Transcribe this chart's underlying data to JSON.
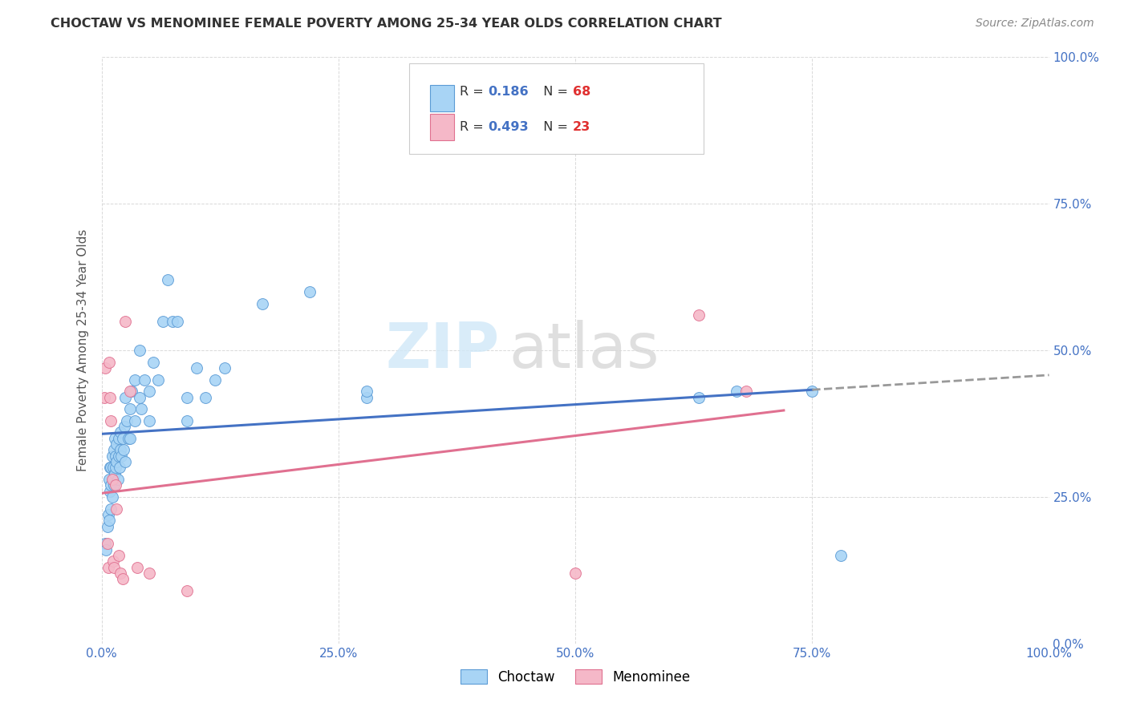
{
  "title": "CHOCTAW VS MENOMINEE FEMALE POVERTY AMONG 25-34 YEAR OLDS CORRELATION CHART",
  "source": "Source: ZipAtlas.com",
  "ylabel": "Female Poverty Among 25-34 Year Olds",
  "xlim": [
    0,
    1
  ],
  "ylim": [
    0,
    1
  ],
  "xticks": [
    0,
    0.25,
    0.5,
    0.75,
    1.0
  ],
  "yticks": [
    0,
    0.25,
    0.5,
    0.75,
    1.0
  ],
  "xticklabels": [
    "0.0%",
    "25.0%",
    "50.0%",
    "75.0%",
    "100.0%"
  ],
  "yticklabels_right": [
    "0.0%",
    "25.0%",
    "50.0%",
    "75.0%",
    "100.0%"
  ],
  "choctaw_color": "#a8d4f5",
  "menominee_color": "#f5b8c8",
  "choctaw_edge_color": "#5b9bd5",
  "menominee_edge_color": "#e07090",
  "choctaw_R": 0.186,
  "choctaw_N": 68,
  "menominee_R": 0.493,
  "menominee_N": 23,
  "choctaw_line_color": "#4472c4",
  "menominee_line_color": "#e07090",
  "choctaw_line_solid_end": 0.75,
  "choctaw_line_end": 1.0,
  "menominee_line_end": 0.72,
  "watermark_zip": "ZIP",
  "watermark_atlas": "atlas",
  "legend_R_color": "#4472c4",
  "legend_N_color": "#e03030",
  "right_tick_color": "#4472c4",
  "background_color": "#ffffff",
  "grid_color": "#d0d0d0",
  "choctaw_x": [
    0.004,
    0.005,
    0.006,
    0.007,
    0.008,
    0.008,
    0.009,
    0.009,
    0.01,
    0.01,
    0.01,
    0.011,
    0.011,
    0.012,
    0.012,
    0.013,
    0.013,
    0.014,
    0.014,
    0.015,
    0.015,
    0.016,
    0.016,
    0.017,
    0.018,
    0.018,
    0.019,
    0.02,
    0.02,
    0.021,
    0.022,
    0.023,
    0.024,
    0.025,
    0.025,
    0.027,
    0.028,
    0.03,
    0.03,
    0.032,
    0.035,
    0.035,
    0.04,
    0.04,
    0.042,
    0.045,
    0.05,
    0.05,
    0.055,
    0.06,
    0.065,
    0.07,
    0.075,
    0.08,
    0.09,
    0.09,
    0.1,
    0.11,
    0.12,
    0.13,
    0.17,
    0.22,
    0.28,
    0.28,
    0.63,
    0.67,
    0.75,
    0.78
  ],
  "choctaw_y": [
    0.17,
    0.16,
    0.2,
    0.22,
    0.21,
    0.28,
    0.26,
    0.3,
    0.23,
    0.27,
    0.3,
    0.25,
    0.32,
    0.28,
    0.3,
    0.27,
    0.33,
    0.29,
    0.35,
    0.3,
    0.32,
    0.31,
    0.34,
    0.28,
    0.32,
    0.35,
    0.3,
    0.33,
    0.36,
    0.32,
    0.35,
    0.33,
    0.37,
    0.31,
    0.42,
    0.38,
    0.35,
    0.4,
    0.35,
    0.43,
    0.45,
    0.38,
    0.5,
    0.42,
    0.4,
    0.45,
    0.43,
    0.38,
    0.48,
    0.45,
    0.55,
    0.62,
    0.55,
    0.55,
    0.42,
    0.38,
    0.47,
    0.42,
    0.45,
    0.47,
    0.58,
    0.6,
    0.42,
    0.43,
    0.42,
    0.43,
    0.43,
    0.15
  ],
  "menominee_x": [
    0.003,
    0.004,
    0.006,
    0.007,
    0.008,
    0.009,
    0.01,
    0.011,
    0.012,
    0.013,
    0.015,
    0.016,
    0.018,
    0.02,
    0.022,
    0.025,
    0.03,
    0.038,
    0.05,
    0.09,
    0.5,
    0.63,
    0.68
  ],
  "menominee_y": [
    0.42,
    0.47,
    0.17,
    0.13,
    0.48,
    0.42,
    0.38,
    0.28,
    0.14,
    0.13,
    0.27,
    0.23,
    0.15,
    0.12,
    0.11,
    0.55,
    0.43,
    0.13,
    0.12,
    0.09,
    0.12,
    0.56,
    0.43
  ]
}
